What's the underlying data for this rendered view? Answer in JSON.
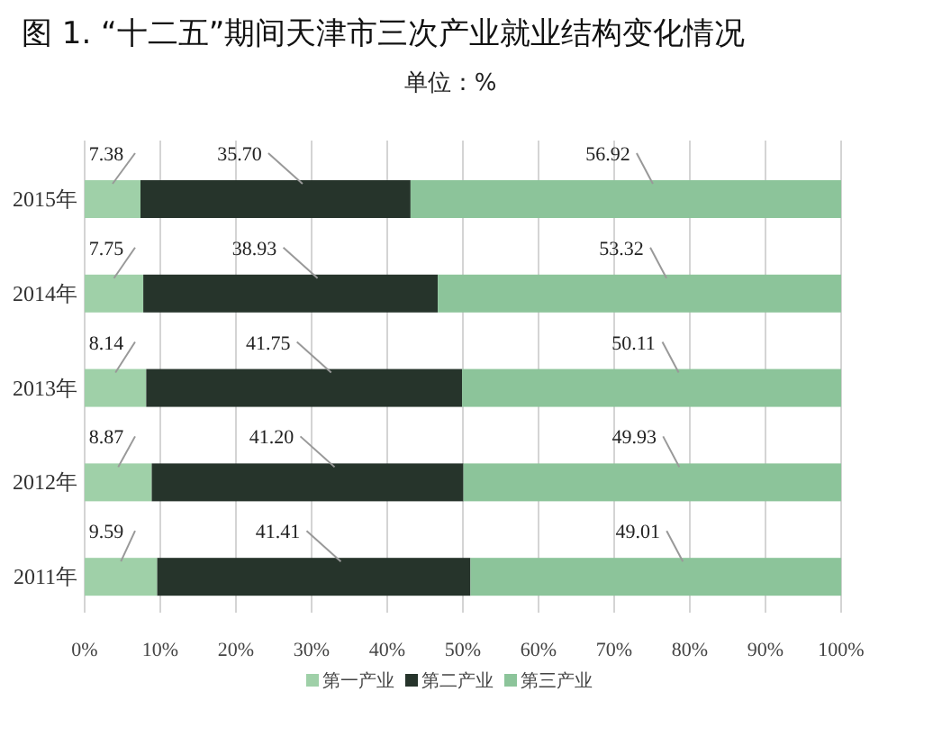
{
  "chart_data": {
    "type": "bar",
    "orientation": "horizontal",
    "stacked": true,
    "title": "图 1. “十二五”期间天津市三次产业就业结构变化情况",
    "subtitle": "单位：%",
    "categories": [
      "2015年",
      "2014年",
      "2013年",
      "2012年",
      "2011年"
    ],
    "series": [
      {
        "name": "第一产业",
        "color": "#9fd0a8",
        "values": [
          7.38,
          7.75,
          8.14,
          8.87,
          9.59
        ],
        "value_labels": [
          "7.38",
          "7.75",
          "8.14",
          "8.87",
          "9.59"
        ]
      },
      {
        "name": "第二产业",
        "color": "#26342b",
        "values": [
          35.7,
          38.93,
          41.75,
          41.2,
          41.41
        ],
        "value_labels": [
          "35.70",
          "38.93",
          "41.75",
          "41.20",
          "41.41"
        ]
      },
      {
        "name": "第三产业",
        "color": "#8cc49a",
        "values": [
          56.92,
          53.32,
          50.11,
          49.93,
          49.01
        ],
        "value_labels": [
          "56.92",
          "53.32",
          "50.11",
          "49.93",
          "49.01"
        ]
      }
    ],
    "xlim": [
      0,
      100
    ],
    "xticks": [
      {
        "value": 0,
        "label": "0%"
      },
      {
        "value": 10,
        "label": "10%"
      },
      {
        "value": 20,
        "label": "20%"
      },
      {
        "value": 30,
        "label": "30%"
      },
      {
        "value": 40,
        "label": "40%"
      },
      {
        "value": 50,
        "label": "50%"
      },
      {
        "value": 60,
        "label": "60%"
      },
      {
        "value": 70,
        "label": "70%"
      },
      {
        "value": 80,
        "label": "80%"
      },
      {
        "value": 90,
        "label": "90%"
      },
      {
        "value": 100,
        "label": "100%"
      }
    ],
    "grid": "x",
    "legend": "bottom"
  }
}
